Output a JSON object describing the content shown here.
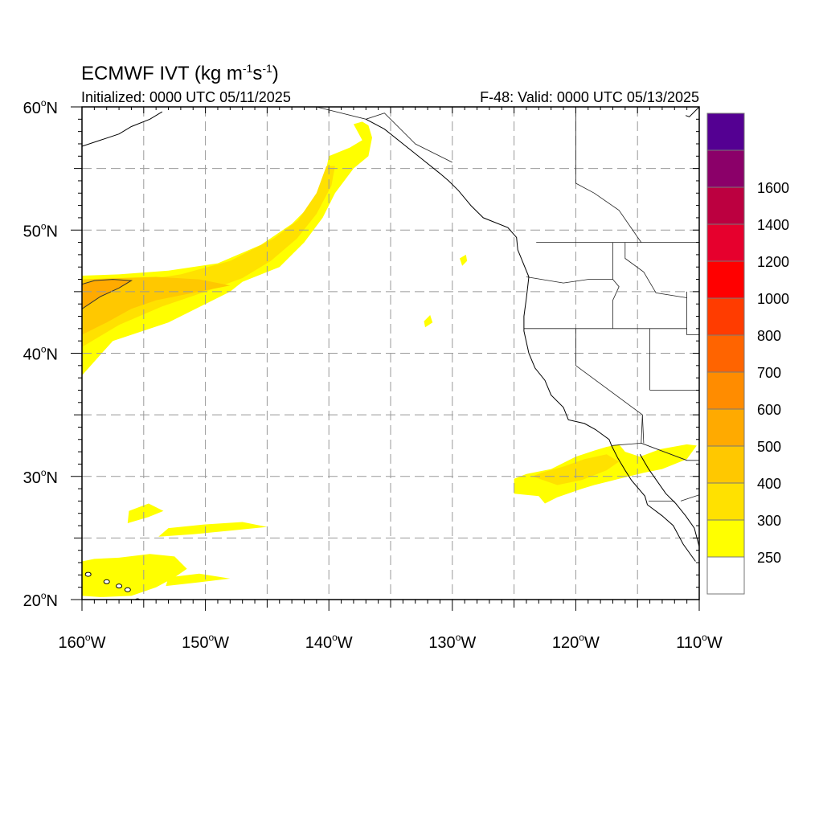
{
  "title": {
    "text": "ECMWF IVT (kg m",
    "sup1": "-1",
    "mid": "s",
    "sup2": "-1",
    "close": ")"
  },
  "subtitle_left": "Initialized: 0000 UTC 05/11/2025",
  "subtitle_right": "F-48: Valid: 0000 UTC 05/13/2025",
  "map": {
    "lon_min": -160,
    "lon_max": -110,
    "lat_min": 20,
    "lat_max": 60,
    "lat_ticks": [
      {
        "value": 20,
        "label": "20",
        "hemi": "N"
      },
      {
        "value": 30,
        "label": "30",
        "hemi": "N"
      },
      {
        "value": 40,
        "label": "40",
        "hemi": "N"
      },
      {
        "value": 50,
        "label": "50",
        "hemi": "N"
      },
      {
        "value": 60,
        "label": "60",
        "hemi": "N"
      }
    ],
    "lon_ticks": [
      {
        "value": -160,
        "label": "160",
        "hemi": "W"
      },
      {
        "value": -150,
        "label": "150",
        "hemi": "W"
      },
      {
        "value": -140,
        "label": "140",
        "hemi": "W"
      },
      {
        "value": -130,
        "label": "130",
        "hemi": "W"
      },
      {
        "value": -120,
        "label": "120",
        "hemi": "W"
      },
      {
        "value": -110,
        "label": "110",
        "hemi": "W"
      }
    ],
    "grid_lines": "dashed, every 5 degrees",
    "ivt_regions": [
      {
        "name": "north-pacific-atmospheric-river",
        "level": 250,
        "polygon": [
          [
            -160,
            38.2
          ],
          [
            -157.5,
            41
          ],
          [
            -153,
            42.5
          ],
          [
            -150,
            44
          ],
          [
            -148,
            45
          ],
          [
            -147,
            45.8
          ],
          [
            -144,
            47
          ],
          [
            -142,
            49
          ],
          [
            -140.5,
            51
          ],
          [
            -139.5,
            53
          ],
          [
            -138,
            55
          ],
          [
            -136.8,
            56
          ],
          [
            -136.5,
            57.5
          ],
          [
            -136.8,
            58.5
          ],
          [
            -137.3,
            58.8
          ],
          [
            -138,
            58.6
          ],
          [
            -137.3,
            57.3
          ],
          [
            -138.3,
            56.7
          ],
          [
            -140,
            56
          ],
          [
            -140.2,
            55
          ],
          [
            -141,
            52.5
          ],
          [
            -143,
            50.5
          ],
          [
            -145.5,
            48.8
          ],
          [
            -149,
            47.3
          ],
          [
            -153,
            46.7
          ],
          [
            -157,
            46.4
          ],
          [
            -160,
            46.3
          ]
        ]
      },
      {
        "name": "north-pacific-ar-core",
        "level": 300,
        "polygon": [
          [
            -160,
            40.5
          ],
          [
            -157,
            42.3
          ],
          [
            -153.5,
            43.8
          ],
          [
            -150,
            45
          ],
          [
            -147,
            46.1
          ],
          [
            -144.7,
            47.5
          ],
          [
            -142.6,
            49.3
          ],
          [
            -141,
            51.3
          ],
          [
            -139.8,
            53.6
          ],
          [
            -139.5,
            55.2
          ],
          [
            -140.2,
            55.2
          ],
          [
            -141,
            53
          ],
          [
            -142.5,
            50.8
          ],
          [
            -144.5,
            49.3
          ],
          [
            -148,
            47.5
          ],
          [
            -152,
            46.4
          ],
          [
            -156,
            45.8
          ],
          [
            -160,
            45.6
          ]
        ]
      },
      {
        "name": "north-pacific-ar-center",
        "level": 400,
        "polygon": [
          [
            -160,
            41.5
          ],
          [
            -158,
            42.5
          ],
          [
            -156,
            43.6
          ],
          [
            -154,
            44.3
          ],
          [
            -151,
            44.9
          ],
          [
            -148,
            45.5
          ],
          [
            -150.5,
            46
          ],
          [
            -154,
            46.2
          ],
          [
            -157,
            46.1
          ],
          [
            -160,
            46
          ]
        ]
      },
      {
        "name": "north-pacific-ar-max",
        "level": 500,
        "polygon": [
          [
            -160,
            43.6
          ],
          [
            -158.5,
            44.6
          ],
          [
            -157,
            45.3
          ],
          [
            -156,
            45.9
          ],
          [
            -157.5,
            46
          ],
          [
            -159,
            45.9
          ],
          [
            -160,
            45.6
          ]
        ]
      },
      {
        "name": "baja-moisture-plume",
        "level": 250,
        "polygon": [
          [
            -125,
            29.8
          ],
          [
            -125,
            28.6
          ],
          [
            -123,
            28.4
          ],
          [
            -122.5,
            27.8
          ],
          [
            -121.5,
            28.3
          ],
          [
            -119.5,
            29
          ],
          [
            -118.5,
            29.3
          ],
          [
            -116.5,
            29.8
          ],
          [
            -114.5,
            30.3
          ],
          [
            -113,
            30.6
          ],
          [
            -111,
            31.4
          ],
          [
            -110.2,
            32.5
          ],
          [
            -111,
            32.6
          ],
          [
            -113.2,
            32.2
          ],
          [
            -114.8,
            31.6
          ],
          [
            -116,
            32
          ],
          [
            -116.5,
            32.6
          ],
          [
            -117.5,
            32.4
          ],
          [
            -118.5,
            32.1
          ],
          [
            -120,
            31.6
          ],
          [
            -122,
            30.6
          ],
          [
            -124,
            30.2
          ]
        ]
      },
      {
        "name": "baja-moisture-core",
        "level": 300,
        "polygon": [
          [
            -123.5,
            30
          ],
          [
            -121.5,
            29.3
          ],
          [
            -119.5,
            29.7
          ],
          [
            -117.5,
            30.5
          ],
          [
            -116.5,
            31.2
          ],
          [
            -117.5,
            31.8
          ],
          [
            -119.3,
            31.4
          ],
          [
            -121,
            30.8
          ],
          [
            -122.8,
            30.3
          ]
        ]
      },
      {
        "name": "hawaii-moisture-band",
        "level": 250,
        "polygon": [
          [
            -160,
            20.3
          ],
          [
            -158.5,
            20.2
          ],
          [
            -156,
            20.3
          ],
          [
            -154,
            21
          ],
          [
            -152.5,
            21.8
          ],
          [
            -151.5,
            22.5
          ],
          [
            -152.5,
            23.5
          ],
          [
            -154.5,
            23.7
          ],
          [
            -157,
            23.4
          ],
          [
            -159,
            23.3
          ],
          [
            -160,
            23.1
          ]
        ]
      },
      {
        "name": "subtropical-streak-1",
        "level": 250,
        "polygon": [
          [
            -156.3,
            26.2
          ],
          [
            -154.6,
            26.7
          ],
          [
            -153.4,
            27.2
          ],
          [
            -154.6,
            27.8
          ],
          [
            -156.2,
            27.2
          ]
        ]
      },
      {
        "name": "subtropical-streak-2",
        "level": 250,
        "polygon": [
          [
            -153.8,
            25.1
          ],
          [
            -151,
            25.3
          ],
          [
            -148,
            25.6
          ],
          [
            -145,
            25.9
          ],
          [
            -147,
            26.3
          ],
          [
            -150,
            26.1
          ],
          [
            -153,
            25.8
          ]
        ]
      },
      {
        "name": "hawaii-east-streak",
        "level": 250,
        "polygon": [
          [
            -153.2,
            21.1
          ],
          [
            -150.5,
            21.4
          ],
          [
            -148,
            21.7
          ],
          [
            -150.5,
            22.1
          ],
          [
            -153,
            21.8
          ]
        ]
      },
      {
        "name": "oregon-offshore-blob",
        "level": 250,
        "polygon": [
          [
            -129.2,
            47.1
          ],
          [
            -128.8,
            47.5
          ],
          [
            -128.9,
            48.0
          ],
          [
            -129.4,
            47.7
          ]
        ]
      },
      {
        "name": "california-offshore-blob",
        "level": 250,
        "polygon": [
          [
            -132.2,
            42.1
          ],
          [
            -131.6,
            42.5
          ],
          [
            -131.8,
            43.1
          ],
          [
            -132.3,
            42.6
          ]
        ]
      }
    ],
    "land_outlines": [
      {
        "name": "north-american-coastline",
        "points": [
          [
            -137,
            59
          ],
          [
            -135.5,
            58.2
          ],
          [
            -134,
            57
          ],
          [
            -132.5,
            55.8
          ],
          [
            -131,
            54.6
          ],
          [
            -130.3,
            54
          ],
          [
            -129.5,
            53.2
          ],
          [
            -128.5,
            52
          ],
          [
            -127.5,
            51
          ],
          [
            -125.5,
            50.2
          ],
          [
            -124.8,
            49.4
          ],
          [
            -124.7,
            48.4
          ],
          [
            -123.8,
            46.2
          ],
          [
            -124,
            44.5
          ],
          [
            -124.2,
            43
          ],
          [
            -124.2,
            41.8
          ],
          [
            -123.8,
            40
          ],
          [
            -123.3,
            38.8
          ],
          [
            -122.5,
            37.8
          ],
          [
            -122,
            36.6
          ],
          [
            -121,
            35.6
          ],
          [
            -120.6,
            34.6
          ],
          [
            -119.3,
            34.3
          ],
          [
            -118.4,
            33.8
          ],
          [
            -117.3,
            33
          ],
          [
            -117.1,
            32.5
          ],
          [
            -116.6,
            31.5
          ],
          [
            -116,
            30.5
          ],
          [
            -115.5,
            29.7
          ],
          [
            -114.4,
            28.4
          ],
          [
            -114.2,
            27.7
          ],
          [
            -113,
            26.8
          ],
          [
            -112.1,
            26
          ],
          [
            -111.3,
            24.5
          ],
          [
            -110.3,
            23.1
          ]
        ]
      },
      {
        "name": "gulf-of-california-coast",
        "points": [
          [
            -114.8,
            31.8
          ],
          [
            -114.1,
            30.6
          ],
          [
            -113.4,
            29.6
          ],
          [
            -112.7,
            28.6
          ],
          [
            -111.9,
            27.8
          ],
          [
            -111.1,
            26.8
          ],
          [
            -110.4,
            25.8
          ],
          [
            -110,
            24.3
          ]
        ]
      },
      {
        "name": "alaska-siberia-coast",
        "points": [
          [
            -160,
            56.8
          ],
          [
            -158.5,
            57.3
          ],
          [
            -157,
            57.8
          ],
          [
            -156,
            58.4
          ],
          [
            -154.5,
            59
          ],
          [
            -153.5,
            59.6
          ]
        ]
      },
      {
        "name": "alaska-peninsula-tip",
        "points": [
          [
            -110,
            60
          ],
          [
            -110.8,
            59.2
          ],
          [
            -111.1,
            59.3
          ]
        ]
      }
    ],
    "state_borders": [
      {
        "name": "canada-us-border",
        "points": [
          [
            -123.2,
            49
          ],
          [
            -110,
            49
          ]
        ]
      },
      {
        "name": "alaska-canada-border",
        "points": [
          [
            -141,
            60
          ],
          [
            -137,
            59
          ],
          [
            -135.5,
            59.5
          ],
          [
            -133,
            57
          ],
          [
            -130,
            55.5
          ]
        ]
      },
      {
        "name": "bc-alberta-border",
        "points": [
          [
            -120,
            60
          ],
          [
            -120,
            53.8
          ],
          [
            -118.5,
            53
          ],
          [
            -116.5,
            51.6
          ],
          [
            -114.7,
            49
          ]
        ]
      },
      {
        "name": "washington-oregon-border",
        "points": [
          [
            -124,
            46.2
          ],
          [
            -121,
            45.7
          ],
          [
            -119,
            46
          ],
          [
            -117,
            46
          ]
        ]
      },
      {
        "name": "washington-idaho-border",
        "points": [
          [
            -117,
            49
          ],
          [
            -117,
            46
          ]
        ]
      },
      {
        "name": "oregon-idaho-border",
        "points": [
          [
            -117,
            46
          ],
          [
            -116.5,
            45.4
          ],
          [
            -117,
            44.3
          ],
          [
            -117,
            42
          ]
        ]
      },
      {
        "name": "oregon-california-border",
        "points": [
          [
            -124.2,
            42
          ],
          [
            -111,
            42
          ]
        ]
      },
      {
        "name": "idaho-montana-border",
        "points": [
          [
            -116,
            49
          ],
          [
            -116,
            47.7
          ],
          [
            -114.5,
            46.6
          ],
          [
            -113.5,
            44.9
          ],
          [
            -111,
            44.5
          ]
        ]
      },
      {
        "name": "california-nevada-border",
        "points": [
          [
            -120,
            42
          ],
          [
            -120,
            39
          ],
          [
            -114.6,
            35
          ],
          [
            -114.5,
            32.7
          ]
        ]
      },
      {
        "name": "nevada-utah-border",
        "points": [
          [
            -114,
            42
          ],
          [
            -114,
            37
          ]
        ]
      },
      {
        "name": "utah-arizona-border",
        "points": [
          [
            -114,
            37
          ],
          [
            -110,
            37
          ]
        ]
      },
      {
        "name": "arizona-border",
        "points": [
          [
            -114.6,
            35
          ],
          [
            -114.7,
            32.7
          ],
          [
            -111,
            31.3
          ],
          [
            -110,
            31.3
          ]
        ]
      },
      {
        "name": "us-mexico-border",
        "points": [
          [
            -117.1,
            32.5
          ],
          [
            -114.7,
            32.7
          ],
          [
            -111,
            31.3
          ]
        ]
      },
      {
        "name": "wyoming-border",
        "points": [
          [
            -111,
            45
          ],
          [
            -111,
            41.5
          ],
          [
            -110,
            41.5
          ]
        ]
      },
      {
        "name": "baja-state-border",
        "points": [
          [
            -114.1,
            28
          ],
          [
            -112,
            28
          ]
        ]
      },
      {
        "name": "sonora-sinaloa-border",
        "points": [
          [
            -111.5,
            28
          ],
          [
            -110,
            28.5
          ]
        ]
      }
    ]
  },
  "colorbar": {
    "levels": [
      {
        "value": "250",
        "color": "#ffff00"
      },
      {
        "value": "300",
        "color": "#ffe100"
      },
      {
        "value": "400",
        "color": "#ffc800"
      },
      {
        "value": "500",
        "color": "#ffaa00"
      },
      {
        "value": "600",
        "color": "#ff8c00"
      },
      {
        "value": "700",
        "color": "#ff6400"
      },
      {
        "value": "800",
        "color": "#ff3c00"
      },
      {
        "value": "1000",
        "color": "#ff0000"
      },
      {
        "value": "1200",
        "color": "#e6002d"
      },
      {
        "value": "1400",
        "color": "#bc0040"
      },
      {
        "value": "1600",
        "color": "#8b0069"
      }
    ],
    "top_color": "#540092",
    "below_color": "#ffffff"
  }
}
